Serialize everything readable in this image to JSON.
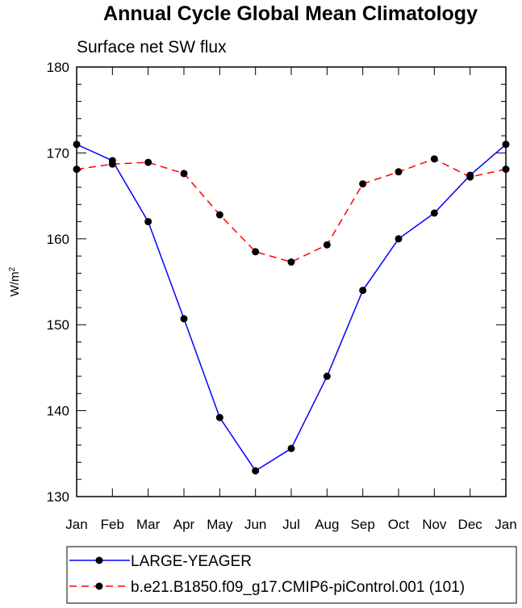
{
  "chart_data": {
    "type": "line",
    "title": "Annual Cycle Global Mean Climatology",
    "subtitle": "Surface net SW flux",
    "ylabel_base": "W/m",
    "ylabel_sup": "2",
    "categories": [
      "Jan",
      "Feb",
      "Mar",
      "Apr",
      "May",
      "Jun",
      "Jul",
      "Aug",
      "Sep",
      "Oct",
      "Nov",
      "Dec",
      "Jan"
    ],
    "ylim": [
      130,
      180
    ],
    "yticks": [
      "130",
      "140",
      "150",
      "160",
      "170",
      "180"
    ],
    "grid": false,
    "legend_position": "bottom",
    "series": [
      {
        "name": "LARGE-YEAGER",
        "color": "#0000ff",
        "style": "solid",
        "marker": "circle",
        "values": [
          171.0,
          169.1,
          162.0,
          150.7,
          139.2,
          133.0,
          135.6,
          144.0,
          154.0,
          160.0,
          163.0,
          167.4,
          171.0
        ]
      },
      {
        "name": "b.e21.B1850.f09_g17.CMIP6-piControl.001 (101)",
        "color": "#ff0000",
        "style": "dashed",
        "marker": "circle",
        "values": [
          168.1,
          168.7,
          168.9,
          167.6,
          162.8,
          158.5,
          157.3,
          159.3,
          166.4,
          167.8,
          169.3,
          167.2,
          168.1
        ]
      }
    ]
  }
}
